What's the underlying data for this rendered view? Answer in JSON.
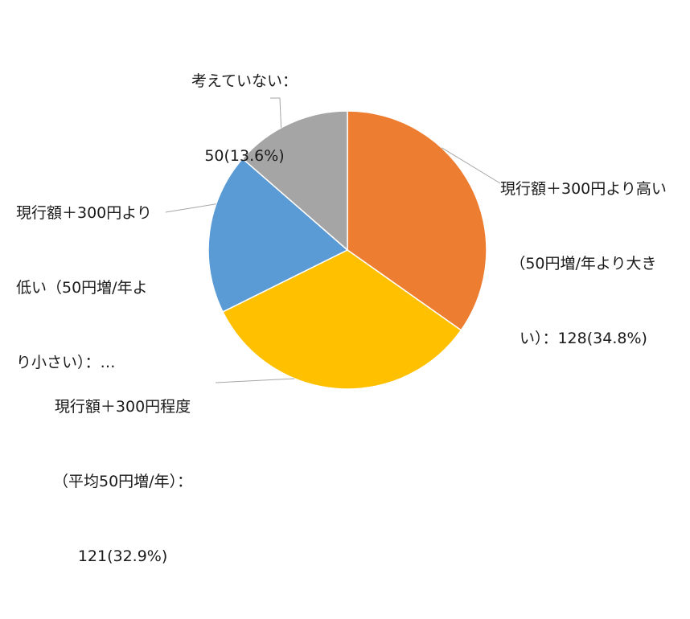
{
  "chart_data": {
    "type": "pie",
    "title": "",
    "start_angle_deg": 0,
    "direction": "clockwise",
    "slices": [
      {
        "category": "現行額＋300円より高い（50円増/年より大きい）",
        "value": 128,
        "percent": 34.8,
        "color": "#ED7D31",
        "label_lines": [
          "現行額＋300円より高い",
          "（50円増/年より大き",
          "い）：128(34.8%)"
        ]
      },
      {
        "category": "現行額＋300円程度（平均50円増/年）",
        "value": 121,
        "percent": 32.9,
        "color": "#FFC000",
        "label_lines": [
          "現行額＋300円程度",
          "（平均50円増/年）：",
          "121(32.9%)"
        ]
      },
      {
        "category": "現行額＋300円より低い（50円増/年より小さい）",
        "value": 69,
        "percent": 18.8,
        "color": "#5B9BD5",
        "label_lines": [
          "現行額＋300円より",
          "低い（50円増/年よ",
          "り小さい）：…"
        ]
      },
      {
        "category": "考えていない",
        "value": 50,
        "percent": 13.6,
        "color": "#A5A5A5",
        "label_lines": [
          "考えていない：",
          "50(13.6%)"
        ]
      }
    ],
    "legend": "none",
    "data_labels": "outside-with-leader-lines"
  }
}
